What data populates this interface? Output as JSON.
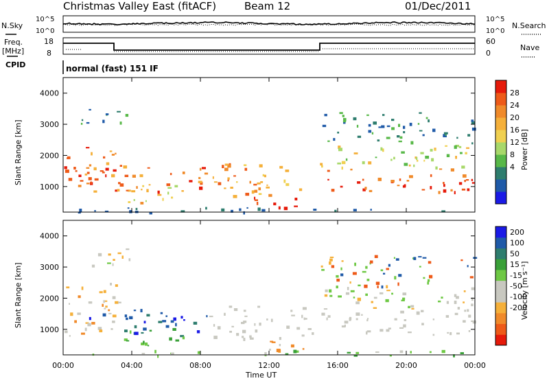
{
  "header": {
    "title": "Christmas Valley East (fitACF)",
    "beam": "Beam 12",
    "date": "01/Dec/2011"
  },
  "params": {
    "nsky_label": "N.Sky",
    "nsky_ticks": [
      "10^5",
      "10^0"
    ],
    "nsearch_label": "N.Search",
    "freq_label": "Freq.",
    "freq_unit": "[MHz]",
    "freq_ticks": [
      "18",
      "8"
    ],
    "nave_label": "Nave",
    "nave_ticks": [
      "60",
      "0"
    ],
    "cpid_label": "CPID",
    "cpid_text": "normal (fast) 151 IF"
  },
  "colors": {
    "power": [
      "#1a1ae6",
      "#1f5aa8",
      "#2e7d6e",
      "#58b848",
      "#a8d86a",
      "#f0d050",
      "#f5b03a",
      "#f08a2a",
      "#ee5a18",
      "#e61a0a"
    ],
    "velocity": [
      "#e61a0a",
      "#ee5a18",
      "#f08a2a",
      "#f5b03a",
      "#c8c8c0",
      "#c8c8c0",
      "#6ec844",
      "#3aa038",
      "#2e7d6e",
      "#1f5aa8",
      "#1a1ae6"
    ]
  },
  "chart_data": [
    {
      "type": "heatmap",
      "name": "power",
      "ylabel": "Slant Range [km]",
      "yticks": [
        "4000",
        "3000",
        "2000",
        "1000"
      ],
      "xticks": [
        "00:00",
        "04:00",
        "08:00",
        "12:00",
        "16:00",
        "20:00",
        "00:00"
      ],
      "xlim_hours": [
        0,
        24
      ],
      "ylim_km": [
        180,
        4500
      ],
      "colorbar_label": "Power [dB]",
      "colorbar_ticks": [
        "28",
        "24",
        "20",
        "16",
        "12",
        "8",
        "4"
      ]
    },
    {
      "type": "heatmap",
      "name": "velocity",
      "ylabel": "Slant Range [km]",
      "yticks": [
        "4000",
        "3000",
        "2000",
        "1000"
      ],
      "xticks": [
        "00:00",
        "04:00",
        "08:00",
        "12:00",
        "16:00",
        "20:00",
        "00:00"
      ],
      "xlabel": "Time UT",
      "xlim_hours": [
        0,
        24
      ],
      "ylim_km": [
        180,
        4500
      ],
      "colorbar_label": "Velocity [m s⁻¹]",
      "colorbar_ticks": [
        "200",
        "100",
        "50",
        "15",
        "-15",
        "-50",
        "-100",
        "-200"
      ]
    }
  ]
}
